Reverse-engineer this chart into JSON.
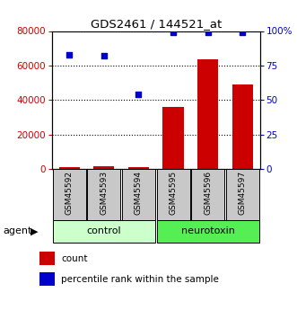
{
  "title": "GDS2461 / 144521_at",
  "samples": [
    "GSM45592",
    "GSM45593",
    "GSM45594",
    "GSM45595",
    "GSM45596",
    "GSM45597"
  ],
  "counts": [
    1000,
    1500,
    1000,
    36000,
    63500,
    49000
  ],
  "percentiles": [
    83,
    82,
    54,
    99,
    99,
    99
  ],
  "left_ylim": [
    0,
    80000
  ],
  "right_ylim": [
    0,
    100
  ],
  "left_yticks": [
    0,
    20000,
    40000,
    60000,
    80000
  ],
  "right_yticks": [
    0,
    25,
    50,
    75,
    100
  ],
  "right_yticklabels": [
    "0",
    "25",
    "50",
    "75",
    "100%"
  ],
  "groups": [
    {
      "label": "control",
      "indices": [
        0,
        1,
        2
      ],
      "color": "#ccffcc"
    },
    {
      "label": "neurotoxin",
      "indices": [
        3,
        4,
        5
      ],
      "color": "#55ee55"
    }
  ],
  "bar_color": "#cc0000",
  "scatter_color": "#0000cc",
  "grid_color": "#000000",
  "bg_color": "#ffffff",
  "label_area_color": "#c8c8c8",
  "agent_label": "agent",
  "legend_count_label": "count",
  "legend_pct_label": "percentile rank within the sample"
}
